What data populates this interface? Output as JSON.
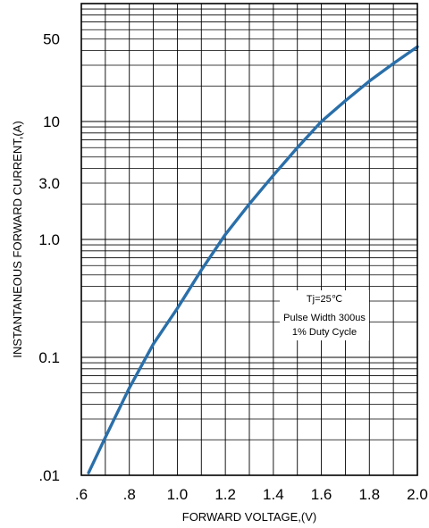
{
  "chart_data": {
    "type": "line",
    "title": "",
    "xlabel": "FORWARD VOLTAGE,(V)",
    "ylabel": "INSTANTANEOUS FORWARD CURRENT,(A)",
    "x_scale": "linear",
    "y_scale": "log",
    "xlim": [
      0.6,
      2.0
    ],
    "ylim": [
      0.01,
      100
    ],
    "x_ticks": [
      {
        "value": 0.6,
        "label": ".6"
      },
      {
        "value": 0.8,
        "label": ".8"
      },
      {
        "value": 1.0,
        "label": "1.0"
      },
      {
        "value": 1.2,
        "label": "1.2"
      },
      {
        "value": 1.4,
        "label": "1.4"
      },
      {
        "value": 1.6,
        "label": "1.6"
      },
      {
        "value": 1.8,
        "label": "1.8"
      },
      {
        "value": 2.0,
        "label": "2.0"
      }
    ],
    "y_ticks": [
      {
        "value": 0.01,
        "label": ".01"
      },
      {
        "value": 0.1,
        "label": "0.1"
      },
      {
        "value": 1.0,
        "label": "1.0"
      },
      {
        "value": 3.0,
        "label": "3.0"
      },
      {
        "value": 10,
        "label": "10"
      },
      {
        "value": 50,
        "label": "50"
      }
    ],
    "grid": true,
    "series": [
      {
        "name": "",
        "color": "#2a6fa9",
        "x": [
          0.63,
          0.7,
          0.8,
          0.9,
          1.0,
          1.1,
          1.2,
          1.3,
          1.4,
          1.5,
          1.6,
          1.7,
          1.8,
          1.9,
          2.0
        ],
        "y": [
          0.0105,
          0.021,
          0.055,
          0.13,
          0.26,
          0.55,
          1.1,
          2.0,
          3.5,
          6.0,
          10.0,
          15.0,
          22.0,
          31.0,
          43.0
        ]
      }
    ],
    "annotations": [
      "Tj=25℃",
      "Pulse Width 300us",
      "1% Duty Cycle"
    ]
  }
}
